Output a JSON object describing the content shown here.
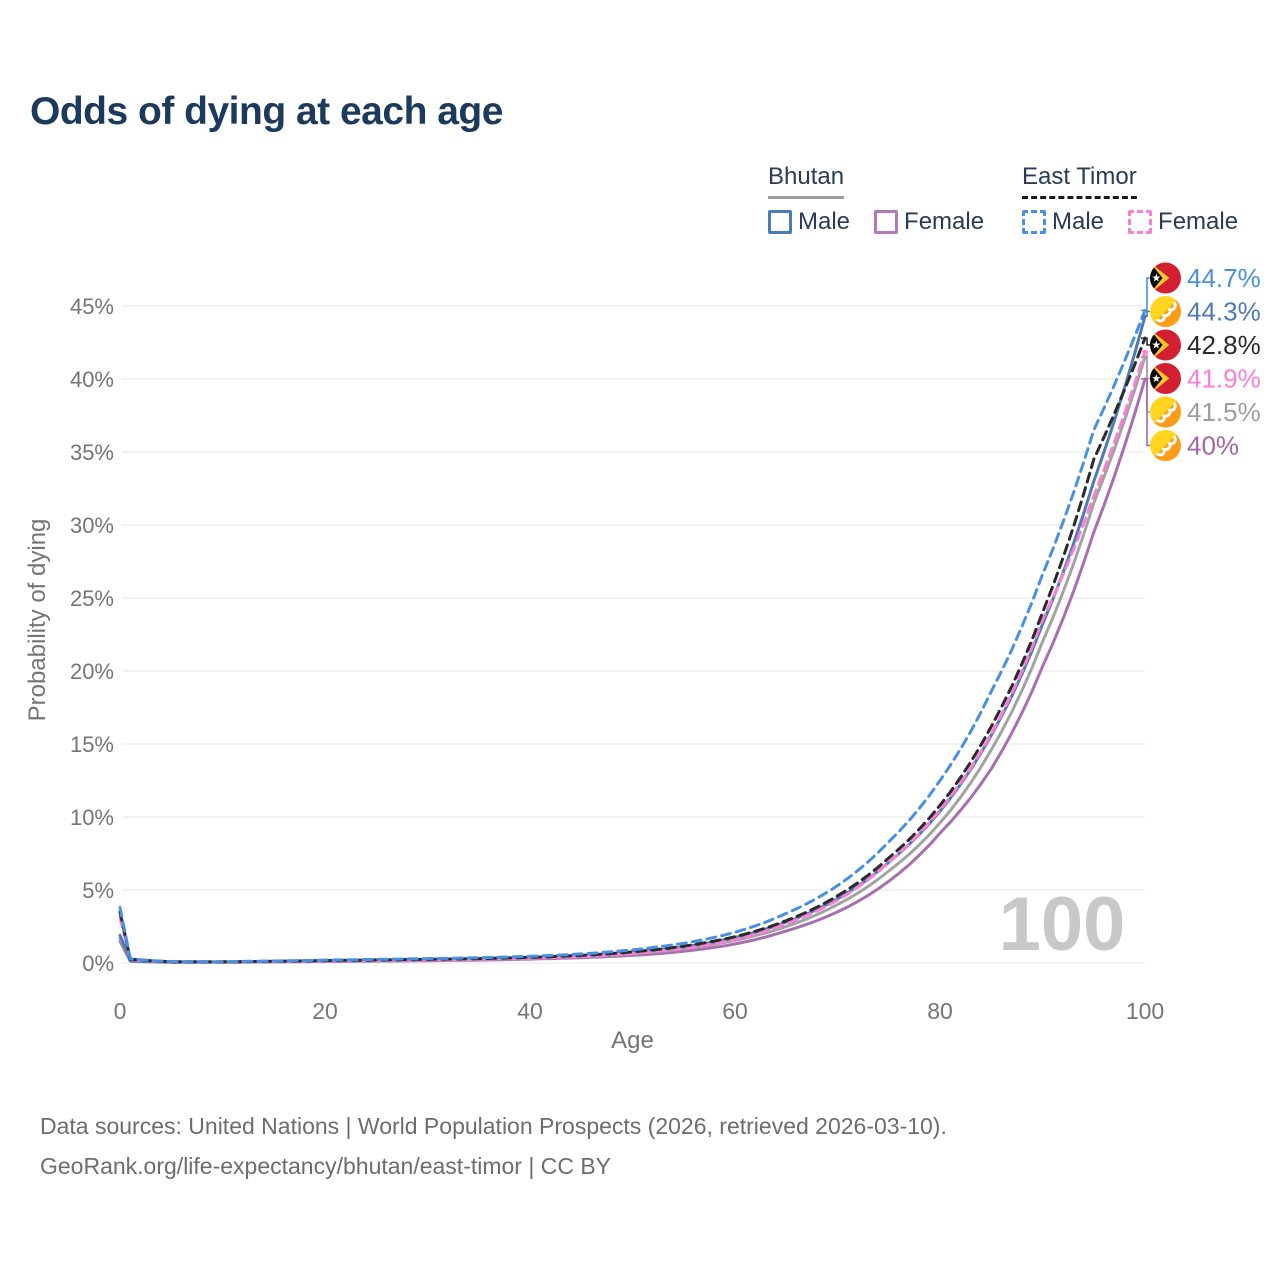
{
  "title": "Odds of dying at each age",
  "watermark": "100",
  "legend": {
    "groups": [
      {
        "label": "Bhutan",
        "underline": "solid",
        "underline_color": "#9e9e9e",
        "items": [
          {
            "label": "Male",
            "color": "#4d7ab8",
            "dash": false
          },
          {
            "label": "Female",
            "color": "#b27ab8",
            "dash": false
          }
        ]
      },
      {
        "label": "East Timor",
        "underline": "dashed",
        "underline_color": "#1a1a1a",
        "items": [
          {
            "label": "Male",
            "color": "#4a90e2",
            "dash": true
          },
          {
            "label": "Female",
            "color": "#f97fd5",
            "dash": true
          }
        ]
      }
    ]
  },
  "chart_data": {
    "type": "line",
    "title": "Odds of dying at each age",
    "xlabel": "Age",
    "ylabel": "Probability of dying",
    "xlim": [
      0,
      100
    ],
    "ylim": [
      0,
      47
    ],
    "grid": true,
    "x_ticks": [
      0,
      20,
      40,
      60,
      80,
      100
    ],
    "y_ticks": [
      0,
      5,
      10,
      15,
      20,
      25,
      30,
      35,
      40,
      45
    ],
    "y_tick_suffix": "%",
    "x": [
      0,
      1,
      5,
      10,
      15,
      20,
      25,
      30,
      35,
      40,
      45,
      50,
      55,
      60,
      65,
      70,
      75,
      80,
      85,
      90,
      95,
      100
    ],
    "series": [
      {
        "name": "Bhutan Female",
        "country": "bhutan",
        "sex": "female",
        "color": "#a770ae",
        "dash": false,
        "values": [
          1.5,
          0.12,
          0.05,
          0.05,
          0.07,
          0.1,
          0.13,
          0.16,
          0.2,
          0.27,
          0.36,
          0.52,
          0.8,
          1.3,
          2.2,
          3.5,
          5.6,
          8.9,
          13.3,
          20.3,
          29.5,
          40.0
        ]
      },
      {
        "name": "Bhutan Both sexes",
        "country": "bhutan",
        "sex": "both",
        "color": "#a3a3a3",
        "dash": false,
        "values": [
          1.7,
          0.13,
          0.055,
          0.055,
          0.09,
          0.12,
          0.16,
          0.2,
          0.25,
          0.33,
          0.44,
          0.64,
          0.97,
          1.55,
          2.5,
          4.0,
          6.3,
          9.6,
          14.6,
          22.0,
          31.5,
          41.5
        ]
      },
      {
        "name": "Bhutan Male",
        "country": "bhutan",
        "sex": "male",
        "color": "#4d7ab8",
        "dash": false,
        "values": [
          1.9,
          0.15,
          0.06,
          0.06,
          0.1,
          0.14,
          0.18,
          0.23,
          0.29,
          0.38,
          0.5,
          0.74,
          1.1,
          1.75,
          2.8,
          4.4,
          6.9,
          10.4,
          15.6,
          23.2,
          33.0,
          44.3
        ]
      },
      {
        "name": "East Timor Female",
        "country": "east-timor",
        "sex": "female",
        "color": "#f97fd5",
        "dash": true,
        "values": [
          3.1,
          0.24,
          0.08,
          0.07,
          0.1,
          0.14,
          0.17,
          0.21,
          0.26,
          0.33,
          0.44,
          0.65,
          1.0,
          1.6,
          2.7,
          4.3,
          6.9,
          10.5,
          15.7,
          23.5,
          32.0,
          41.9
        ]
      },
      {
        "name": "East Timor Both sexes",
        "country": "east-timor",
        "sex": "both",
        "color": "#2b2b2b",
        "dash": true,
        "values": [
          3.5,
          0.27,
          0.09,
          0.08,
          0.12,
          0.17,
          0.21,
          0.26,
          0.3,
          0.39,
          0.52,
          0.76,
          1.15,
          1.8,
          2.9,
          4.6,
          7.2,
          10.8,
          16.2,
          24.0,
          34.5,
          42.8
        ]
      },
      {
        "name": "East Timor Male",
        "country": "east-timor",
        "sex": "male",
        "color": "#4a90e2",
        "dash": true,
        "values": [
          3.8,
          0.3,
          0.1,
          0.09,
          0.14,
          0.2,
          0.25,
          0.3,
          0.36,
          0.46,
          0.62,
          0.9,
          1.35,
          2.1,
          3.4,
          5.3,
          8.3,
          12.5,
          18.6,
          26.6,
          36.5,
          44.7
        ]
      }
    ],
    "end_labels": [
      {
        "label": "44.7%",
        "value": 44.7,
        "country": "east-timor",
        "series": "East Timor Male",
        "color": "#4a90e2"
      },
      {
        "label": "44.3%",
        "value": 44.3,
        "country": "bhutan",
        "series": "Bhutan Male",
        "color": "#4d7ab8"
      },
      {
        "label": "42.8%",
        "value": 42.8,
        "country": "east-timor",
        "series": "East Timor Both sexes",
        "color": "#2b2b2b"
      },
      {
        "label": "41.9%",
        "value": 41.9,
        "country": "east-timor",
        "series": "East Timor Female",
        "color": "#f97fd5"
      },
      {
        "label": "41.5%",
        "value": 41.5,
        "country": "bhutan",
        "series": "Bhutan Both sexes",
        "color": "#9e9e9e"
      },
      {
        "label": "40%",
        "value": 40.0,
        "country": "bhutan",
        "series": "Bhutan Female",
        "color": "#a265aa"
      }
    ]
  },
  "footer": {
    "line1": "Data sources: United Nations | World Population Prospects (2026, retrieved 2026-03-10).",
    "line2": "GeoRank.org/life-expectancy/bhutan/east-timor | CC BY"
  }
}
